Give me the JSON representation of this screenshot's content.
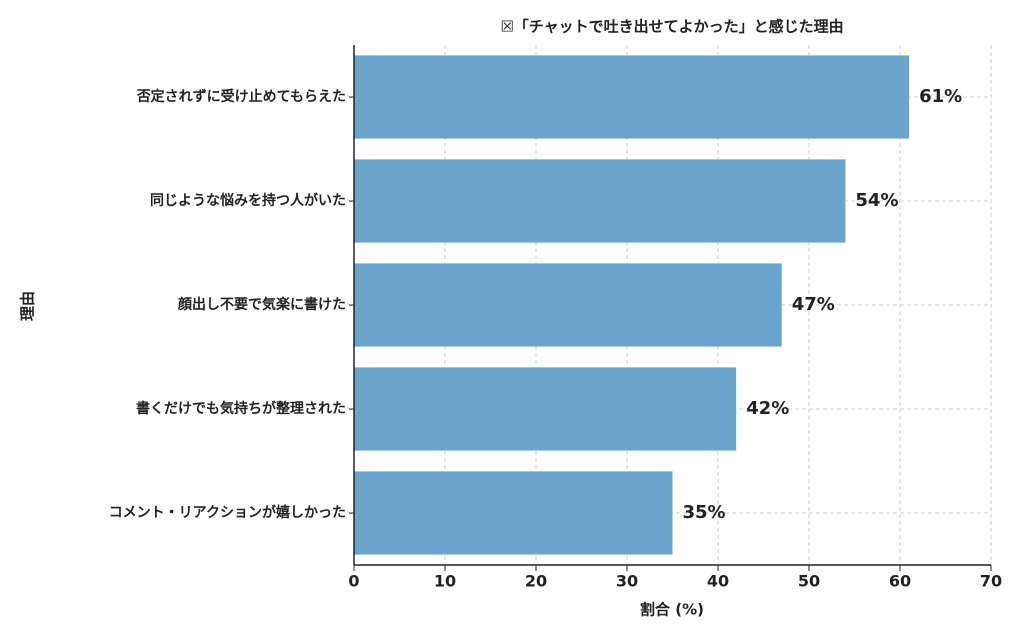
{
  "chart_data": {
    "type": "barh",
    "title": "☒「チャットで吐き出せてよかった」と感じた理由",
    "x_label": "割合 (%)",
    "y_label": "理由",
    "categories": [
      "否定されずに受け止めてもらえた",
      "同じような悩みを持つ人がいた",
      "顔出し不要で気楽に書けた",
      "書くだけでも気持ちが整理された",
      "コメント・リアクションが嬉しかった"
    ],
    "values": [
      61,
      54,
      47,
      42,
      35
    ],
    "value_labels": [
      "61%",
      "54%",
      "47%",
      "42%",
      "35%"
    ],
    "color": "#6ba5ce",
    "xlim": [
      0,
      70
    ],
    "xticks": [
      0,
      10,
      20,
      30,
      40,
      50,
      60,
      70
    ],
    "grid": true
  }
}
